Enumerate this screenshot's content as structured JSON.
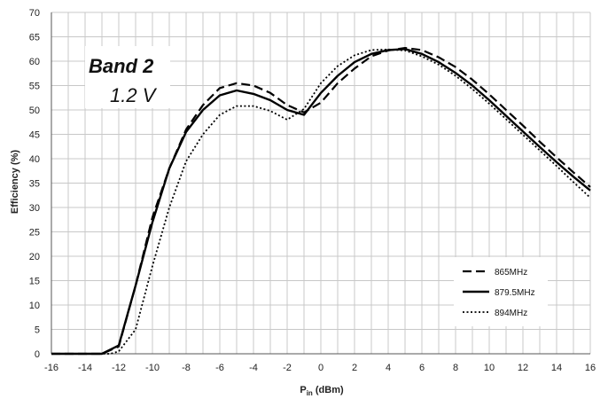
{
  "chart_data": {
    "type": "line",
    "xlabel_main": "P",
    "xlabel_sub": "in",
    "xlabel_unit": " (dBm)",
    "ylabel": "Efficiency (%)",
    "xlim": [
      -16,
      16
    ],
    "ylim": [
      0,
      70
    ],
    "xticks": [
      -16,
      -14,
      -12,
      -10,
      -8,
      -6,
      -4,
      -2,
      0,
      2,
      4,
      6,
      8,
      10,
      12,
      14,
      16
    ],
    "yticks": [
      0,
      5,
      10,
      15,
      20,
      25,
      30,
      35,
      40,
      45,
      50,
      55,
      60,
      65,
      70
    ],
    "grid": true,
    "legend_position": "bottom-right",
    "annotation": {
      "band": "Band 2",
      "voltage": "1.2 V"
    },
    "series": [
      {
        "name": "865MHz",
        "style": "dashed",
        "color": "#000000",
        "x": [
          -16,
          -13,
          -12,
          -11,
          -10,
          -9,
          -8,
          -7,
          -6,
          -5,
          -4,
          -3,
          -2,
          -1,
          0,
          1,
          2,
          3,
          4,
          5,
          6,
          7,
          8,
          9,
          10,
          11,
          12,
          13,
          14,
          15,
          16
        ],
        "y": [
          0,
          0,
          1.5,
          14,
          28,
          38,
          46,
          51,
          54.5,
          55.5,
          55,
          53.5,
          51,
          49.5,
          51.5,
          55.5,
          58.5,
          61,
          62.2,
          62.7,
          62.3,
          60.8,
          58.8,
          56.2,
          53.2,
          50,
          46.8,
          43.5,
          40.3,
          37.2,
          34.2
        ]
      },
      {
        "name": "879.5MHz",
        "style": "solid",
        "color": "#000000",
        "x": [
          -16,
          -13,
          -12,
          -11,
          -10,
          -9,
          -8,
          -7,
          -6,
          -5,
          -4,
          -3,
          -2,
          -1,
          0,
          1,
          2,
          3,
          4,
          5,
          6,
          7,
          8,
          9,
          10,
          11,
          12,
          13,
          14,
          15,
          16
        ],
        "y": [
          0,
          0,
          1.7,
          14,
          27,
          38,
          45.5,
          50,
          53,
          54,
          53.3,
          52,
          50,
          49,
          53.5,
          57,
          59.8,
          61.5,
          62.3,
          62.5,
          61.5,
          59.8,
          57.6,
          55,
          52,
          48.8,
          45.6,
          42.4,
          39.3,
          36.3,
          33.5
        ]
      },
      {
        "name": "894MHz",
        "style": "dotted",
        "color": "#000000",
        "x": [
          -16,
          -12.5,
          -12,
          -11,
          -10,
          -9,
          -8,
          -7,
          -6,
          -5,
          -4,
          -3,
          -2,
          -1,
          0,
          1,
          2,
          3,
          4,
          5,
          6,
          7,
          8,
          9,
          10,
          11,
          12,
          13,
          14,
          15,
          16
        ],
        "y": [
          0,
          0,
          0.5,
          5,
          18,
          30,
          39.5,
          45,
          49,
          50.8,
          50.8,
          49.8,
          48,
          50.2,
          55.5,
          59,
          61.2,
          62.3,
          62.4,
          62.2,
          61,
          59.3,
          57,
          54.3,
          51.3,
          48.1,
          44.9,
          41.7,
          38.5,
          35.2,
          32
        ]
      }
    ]
  }
}
